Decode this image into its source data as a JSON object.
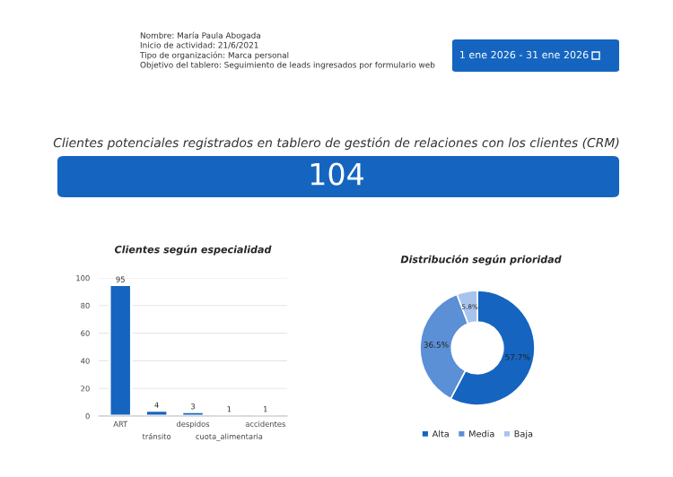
{
  "chart_data": [
    {
      "type": "other",
      "annotations": [
        "Nombre: María Paula Abogada",
        "Inicio de actividad: 21/6/2021",
        "Tipo de organización: Marca personal",
        "Objetivo del tablero: Seguimiento de leads ingresados por formulario web",
        "1 ene 2026 - 31 ene 2026"
      ]
    },
    {
      "type": "other",
      "title": "Clientes potenciales registrados en tablero de gestión de relaciones con los clientes (CRM)",
      "annotations": [
        "104"
      ],
      "color": "#1565c0"
    },
    {
      "type": "bar",
      "title": "Clientes según especialidad",
      "categories": [
        "ART",
        "tránsito",
        "despidos",
        "cuota_alimentaria",
        "accidentes"
      ],
      "values": [
        95,
        4,
        3,
        1,
        1
      ],
      "color": "#1565c0",
      "ylim": [
        0,
        100
      ],
      "yticks": [
        0,
        20,
        40,
        60,
        80,
        100
      ],
      "grid": "y",
      "data_labels": true
    },
    {
      "type": "donut",
      "title": "Distribución según prioridad",
      "categories": [
        "Alta",
        "Media",
        "Baja"
      ],
      "values": [
        57.7,
        36.5,
        5.8
      ],
      "colors": [
        "#1565c0",
        "#5b8fd6",
        "#a9c4ec"
      ],
      "value_labels": [
        "57.7%",
        "36.5%",
        "5.8%"
      ],
      "legend": "bottom"
    }
  ]
}
